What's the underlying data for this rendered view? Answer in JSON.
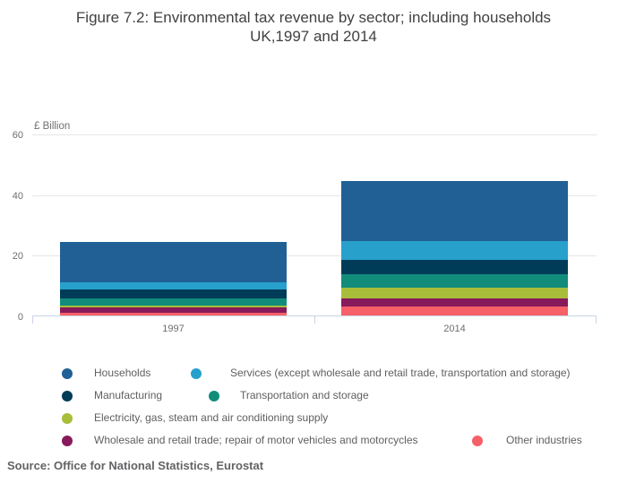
{
  "title": {
    "line1": "Figure 7.2: Environmental tax revenue by sector; including households",
    "line2": "UK,1997 and 2014"
  },
  "y_axis": {
    "unit_label": "£ Billion",
    "ticks": [
      60,
      40,
      20,
      0
    ]
  },
  "x_axis": {
    "categories": [
      "1997",
      "2014"
    ]
  },
  "source": "Source: Office for National Statistics, Eurostat",
  "chart_data": {
    "type": "bar",
    "stacked": true,
    "title": "Figure 7.2: Environmental tax revenue by sector; including households UK,1997 and 2014",
    "ylabel": "£ Billion",
    "ylim": [
      0,
      60
    ],
    "grid": true,
    "legend_position": "bottom",
    "categories": [
      "1997",
      "2014"
    ],
    "series": [
      {
        "name": "Households",
        "color": "#206095",
        "values": [
          13.3,
          19.7
        ]
      },
      {
        "name": "Services (except wholesale and retail trade, transportation and storage)",
        "color": "#27a0cc",
        "values": [
          2.4,
          6.3
        ]
      },
      {
        "name": "Manufacturing",
        "color": "#003c57",
        "values": [
          2.9,
          4.9
        ]
      },
      {
        "name": "Transportation and storage",
        "color": "#118c7b",
        "values": [
          2.2,
          4.4
        ]
      },
      {
        "name": "Electricity, gas, steam and air conditioning supply",
        "color": "#a8bd3a",
        "values": [
          0.8,
          3.4
        ]
      },
      {
        "name": "Wholesale and retail trade; repair of motor vehicles and motorcycles",
        "color": "#871a5b",
        "values": [
          1.6,
          2.8
        ]
      },
      {
        "name": "Other industries",
        "color": "#f66068",
        "values": [
          1.0,
          2.9
        ]
      }
    ]
  }
}
